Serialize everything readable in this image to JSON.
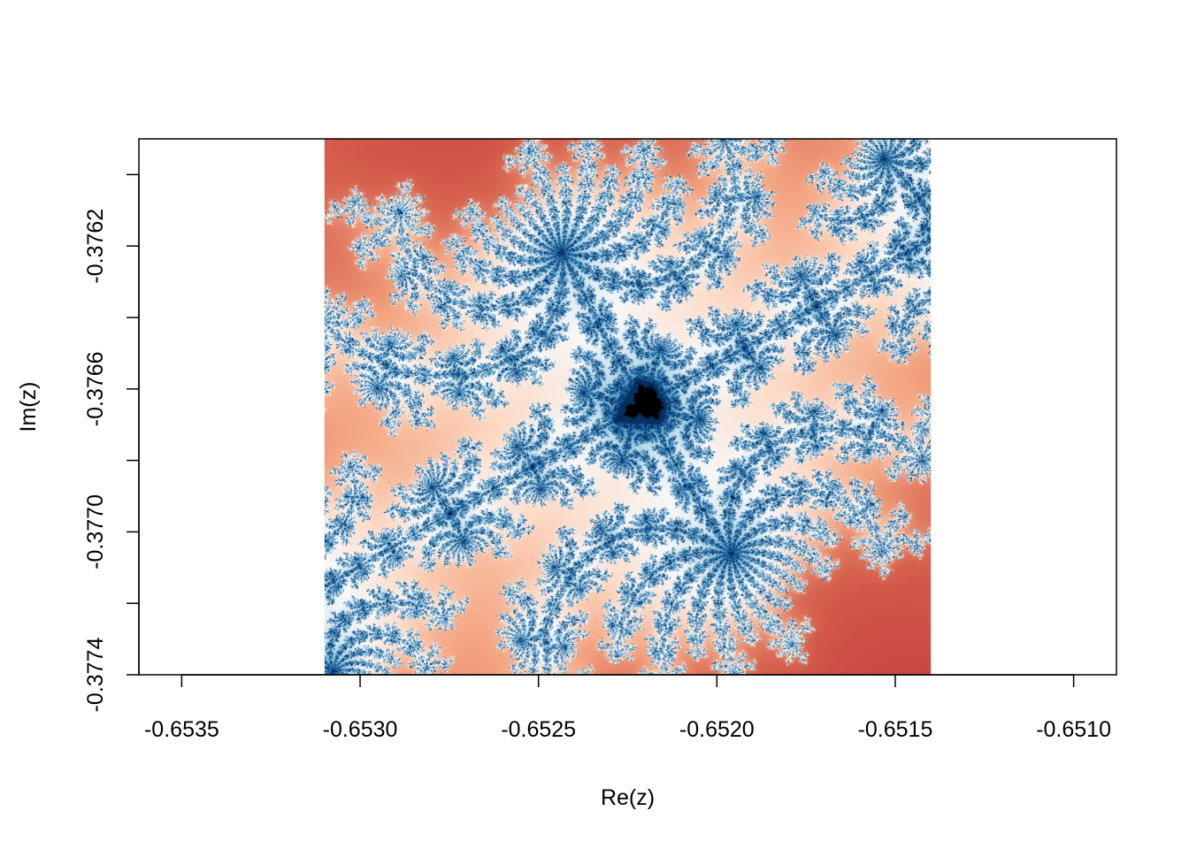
{
  "chart_data": {
    "type": "heatmap",
    "title": "",
    "xlabel": "Re(z)",
    "ylabel": "Im(z)",
    "xlim": [
      -0.65362,
      -0.65088
    ],
    "ylim": [
      -0.3774,
      -0.3759
    ],
    "image_extent": {
      "x": [
        -0.6531,
        -0.6514
      ],
      "y": [
        -0.3774,
        -0.3759
      ]
    },
    "x_ticks": [
      -0.6535,
      -0.653,
      -0.6525,
      -0.652,
      -0.6515,
      -0.651
    ],
    "x_tick_labels": [
      "-0.6535",
      "-0.6530",
      "-0.6525",
      "-0.6520",
      "-0.6515",
      "-0.6510"
    ],
    "y_ticks": [
      -0.3774,
      -0.3772,
      -0.377,
      -0.3768,
      -0.3766,
      -0.3764,
      -0.3762,
      -0.376
    ],
    "y_tick_labels": [
      "-0.3774",
      "",
      "-0.3770",
      "",
      "-0.3766",
      "",
      "-0.3762",
      ""
    ],
    "color_scale": [
      "#000000",
      "#67001f",
      "#b2182b",
      "#d6604d",
      "#f4a582",
      "#fddbc7",
      "#f7f7f7",
      "#d1e5f0",
      "#92c5de",
      "#4393c3",
      "#2166ac",
      "#053061"
    ],
    "interior_color": "#000000",
    "grid": false,
    "legend": "none"
  }
}
